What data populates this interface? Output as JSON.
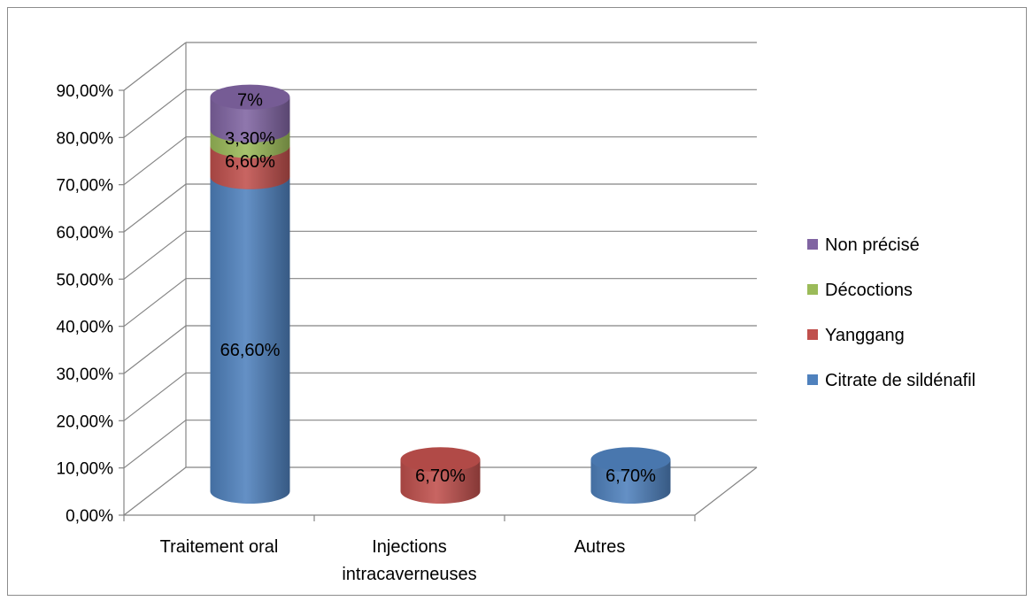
{
  "chart_data": {
    "type": "bar",
    "stacked": true,
    "style": "3d-cylinder",
    "title": "",
    "xlabel": "",
    "ylabel": "",
    "ylim": [
      0,
      0.9
    ],
    "yticks": [
      0,
      0.1,
      0.2,
      0.3,
      0.4,
      0.5,
      0.6,
      0.7,
      0.8,
      0.9
    ],
    "ytick_labels": [
      "0,00%",
      "10,00%",
      "20,00%",
      "30,00%",
      "40,00%",
      "50,00%",
      "60,00%",
      "70,00%",
      "80,00%",
      "90,00%"
    ],
    "grid": true,
    "legend_position": "right",
    "categories": [
      [
        "Traitement oral"
      ],
      [
        "Injections",
        "intracaverneuses"
      ],
      [
        "Autres"
      ]
    ],
    "series": [
      {
        "name": "Citrate de sildénafil",
        "color": "#4f81bd",
        "values": [
          0.666,
          0,
          0.067
        ],
        "labels": [
          "66,60%",
          "",
          "6,70%"
        ]
      },
      {
        "name": "Yanggang",
        "color": "#c0504d",
        "values": [
          0.066,
          0.067,
          0
        ],
        "labels": [
          "6,60%",
          "6,70%",
          ""
        ]
      },
      {
        "name": "Décoctions",
        "color": "#9bbb59",
        "values": [
          0.033,
          0,
          0
        ],
        "labels": [
          "3,30%",
          "",
          ""
        ]
      },
      {
        "name": "Non précisé",
        "color": "#8064a2",
        "values": [
          0.07,
          0,
          0
        ],
        "labels": [
          "7%",
          "",
          ""
        ]
      }
    ]
  }
}
